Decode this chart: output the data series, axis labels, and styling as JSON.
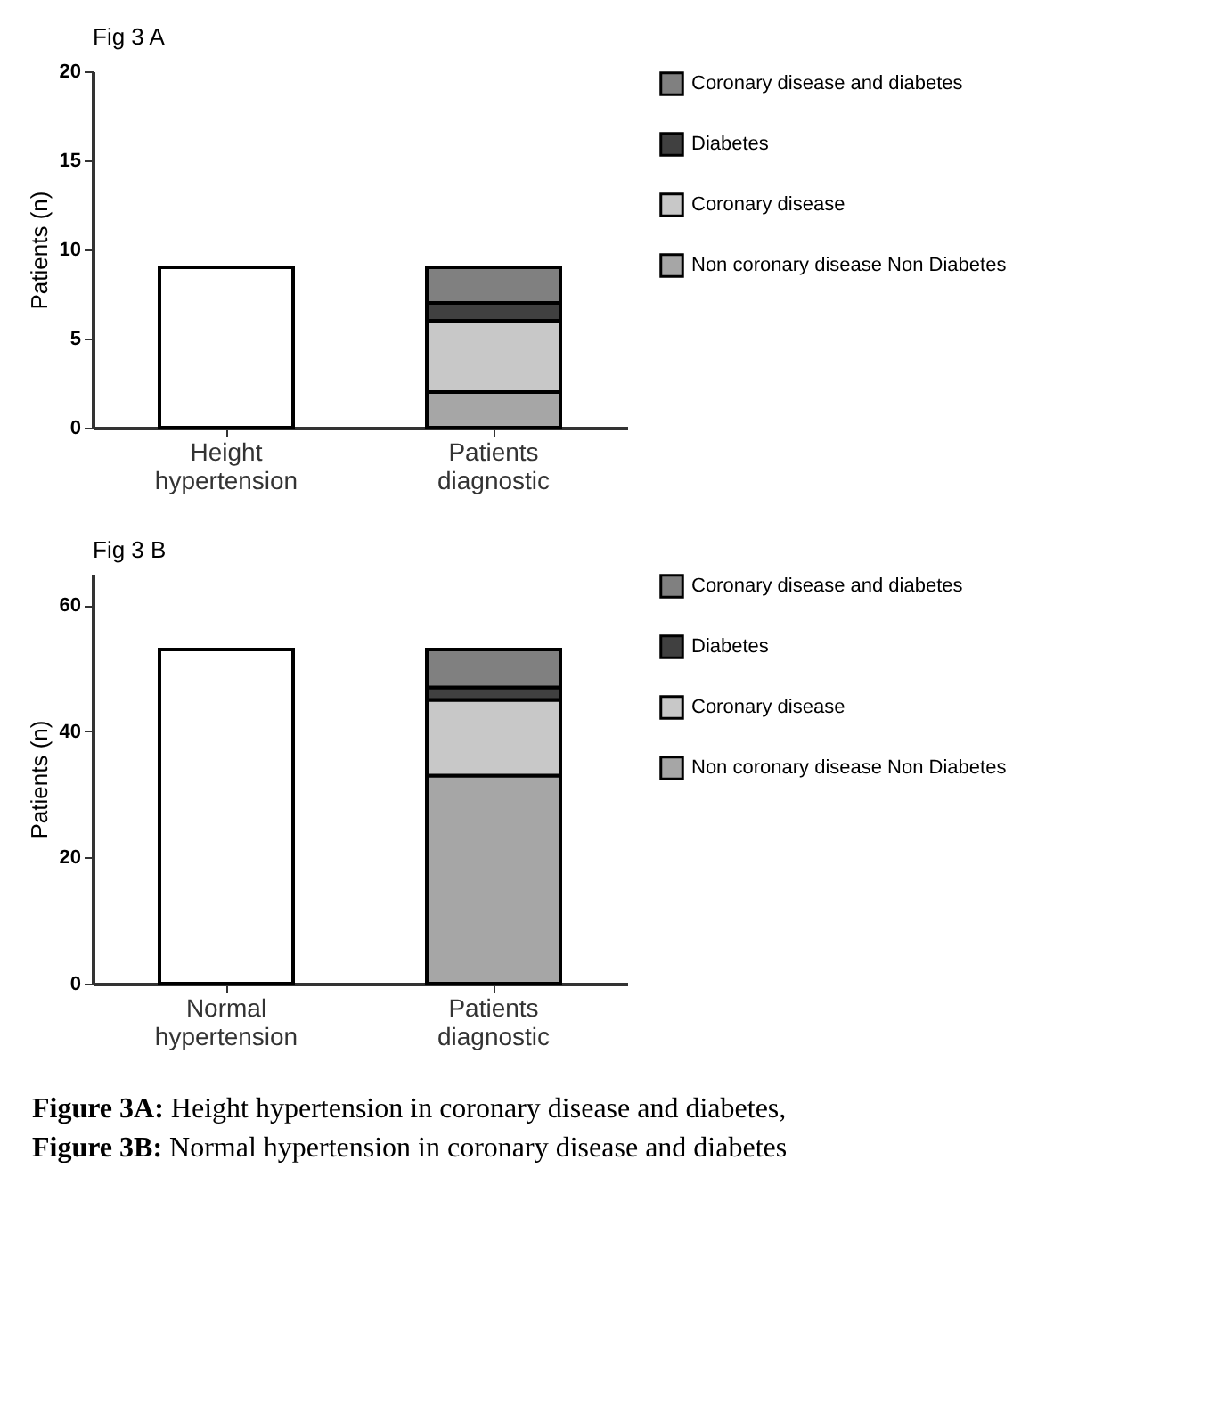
{
  "chart_data": [
    {
      "type": "bar",
      "title": "Fig 3 A",
      "ylabel": "Patients (n)",
      "categories": [
        "Height hypertension",
        "Patients diagnostic"
      ],
      "stacked": true,
      "legend": "right",
      "grid": false,
      "ylim": [
        0,
        20
      ],
      "yticks": [
        0,
        5,
        10,
        15,
        20
      ],
      "series": [
        {
          "color": "#ffffff",
          "values": [
            9,
            null
          ]
        },
        {
          "name": "Non coronary disease Non Diabetes",
          "color": "#a6a6a6",
          "values": [
            null,
            2
          ]
        },
        {
          "name": "Coronary disease",
          "color": "#c8c8c8",
          "values": [
            null,
            4
          ]
        },
        {
          "name": "Diabetes",
          "color": "#404040",
          "values": [
            null,
            1
          ]
        },
        {
          "name": "Coronary disease and diabetes",
          "color": "#808080",
          "values": [
            null,
            2
          ]
        }
      ]
    },
    {
      "type": "bar",
      "title": "Fig 3 B",
      "ylabel": "Patients (n)",
      "categories": [
        "Normal hypertension",
        "Patients diagnostic"
      ],
      "stacked": true,
      "legend": "right",
      "grid": false,
      "ylim": [
        0,
        65
      ],
      "yticks": [
        0,
        20,
        40,
        60
      ],
      "series": [
        {
          "color": "#ffffff",
          "values": [
            53,
            null
          ]
        },
        {
          "name": "Non coronary disease Non Diabetes",
          "color": "#a6a6a6",
          "values": [
            null,
            33
          ]
        },
        {
          "name": "Coronary disease",
          "color": "#c8c8c8",
          "values": [
            null,
            12
          ]
        },
        {
          "name": "Diabetes",
          "color": "#404040",
          "values": [
            null,
            2
          ]
        },
        {
          "name": "Coronary disease and diabetes",
          "color": "#808080",
          "values": [
            null,
            6
          ]
        }
      ],
      "annotations": [
        "Figure 3A: Height hypertension in coronary disease and diabetes,",
        "Figure 3B: Normal hypertension in coronary disease and diabetes"
      ]
    }
  ]
}
